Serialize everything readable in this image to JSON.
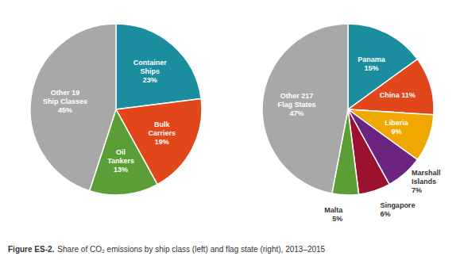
{
  "chart_data": [
    {
      "type": "pie",
      "categories": [
        "Container\nShips\n23%",
        "Bulk\nCarriers\n19%",
        "Oil\nTankers\n13%",
        "Other 19\nShip Classes\n45%"
      ],
      "values": [
        23,
        19,
        13,
        45
      ],
      "colors": [
        "#1a8d9e",
        "#e2471c",
        "#5a9e35",
        "#a8a8a8"
      ]
    },
    {
      "type": "pie",
      "categories": [
        "Panama\n15%",
        "China 11%",
        "Liberia\n9%",
        "Marshall\nIslands\n7%",
        "Singapore\n6%",
        "Malta\n5%",
        "Other 217\nFlag States\n47%"
      ],
      "values": [
        15,
        11,
        9,
        7,
        6,
        5,
        47
      ],
      "colors": [
        "#1a8d9e",
        "#e2471c",
        "#f0a800",
        "#6b2482",
        "#9b1230",
        "#5a9e35",
        "#a8a8a8"
      ]
    }
  ],
  "caption": {
    "label": "Figure ES-2.",
    "text": "Share of CO₂ emissions by ship class (left) and flag state (right), 2013–2015"
  }
}
